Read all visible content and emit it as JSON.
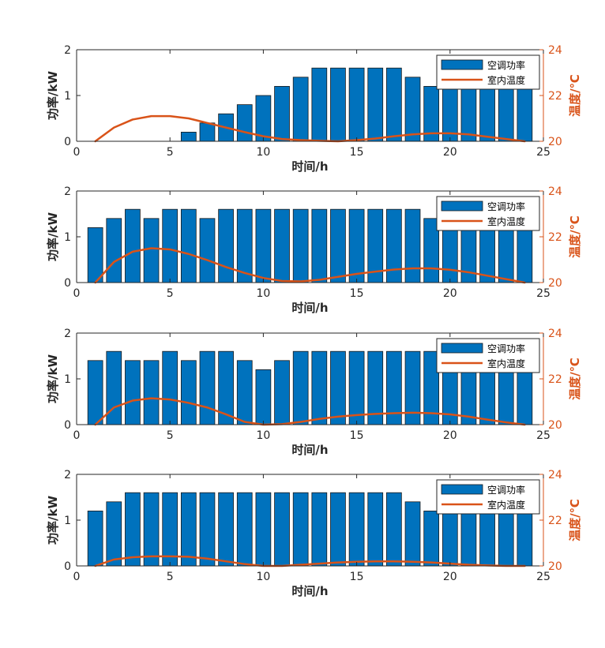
{
  "colors": {
    "bar": "#0072BD",
    "line": "#D95319",
    "axis": "#262626",
    "legend_border": "#262626"
  },
  "chart_data": [
    {
      "type": "bar",
      "xlabel": "时间/h",
      "ylabel": "功率/kW",
      "y2label": "温度/℃",
      "xlim": [
        0,
        25
      ],
      "ylim": [
        0,
        2
      ],
      "y2lim": [
        20,
        24
      ],
      "xticks": [
        "0",
        "5",
        "10",
        "15",
        "20",
        "25"
      ],
      "yticks": [
        "0",
        "1",
        "2"
      ],
      "y2ticks": [
        "20",
        "22",
        "24"
      ],
      "legend": {
        "position": "top-right",
        "entries": [
          "空调功率",
          "室内温度"
        ]
      },
      "x": [
        1,
        2,
        3,
        4,
        5,
        6,
        7,
        8,
        9,
        10,
        11,
        12,
        13,
        14,
        15,
        16,
        17,
        18,
        19,
        20,
        21,
        22,
        23,
        24
      ],
      "series": [
        {
          "name": "空调功率",
          "type": "bar",
          "axis": "left",
          "values": [
            0,
            0,
            0,
            0,
            0,
            0.2,
            0.4,
            0.6,
            0.8,
            1.0,
            1.2,
            1.4,
            1.6,
            1.6,
            1.6,
            1.6,
            1.6,
            1.4,
            1.2,
            1.4,
            1.6,
            1.6,
            1.4,
            1.2
          ]
        },
        {
          "name": "室内温度",
          "type": "line",
          "axis": "right",
          "values": [
            20.0,
            20.6,
            20.95,
            21.1,
            21.1,
            21.0,
            20.8,
            20.6,
            20.4,
            20.22,
            20.1,
            20.05,
            20.02,
            20.0,
            20.05,
            20.12,
            20.22,
            20.3,
            20.35,
            20.35,
            20.3,
            20.2,
            20.1,
            20.0
          ]
        }
      ]
    },
    {
      "type": "bar",
      "xlabel": "时间/h",
      "ylabel": "功率/kW",
      "y2label": "温度/℃",
      "xlim": [
        0,
        25
      ],
      "ylim": [
        0,
        2
      ],
      "y2lim": [
        20,
        24
      ],
      "xticks": [
        "0",
        "5",
        "10",
        "15",
        "20",
        "25"
      ],
      "yticks": [
        "0",
        "1",
        "2"
      ],
      "y2ticks": [
        "20",
        "22",
        "24"
      ],
      "legend": {
        "position": "top-right",
        "entries": [
          "空调功率",
          "室内温度"
        ]
      },
      "x": [
        1,
        2,
        3,
        4,
        5,
        6,
        7,
        8,
        9,
        10,
        11,
        12,
        13,
        14,
        15,
        16,
        17,
        18,
        19,
        20,
        21,
        22,
        23,
        24
      ],
      "series": [
        {
          "name": "空调功率",
          "type": "bar",
          "axis": "left",
          "values": [
            1.2,
            1.4,
            1.6,
            1.4,
            1.6,
            1.6,
            1.4,
            1.6,
            1.6,
            1.6,
            1.6,
            1.6,
            1.6,
            1.6,
            1.6,
            1.6,
            1.6,
            1.6,
            1.4,
            1.6,
            1.6,
            1.6,
            1.6,
            1.4
          ]
        },
        {
          "name": "室内温度",
          "type": "line",
          "axis": "right",
          "values": [
            20.0,
            20.9,
            21.35,
            21.5,
            21.45,
            21.25,
            20.98,
            20.68,
            20.42,
            20.2,
            20.07,
            20.05,
            20.12,
            20.25,
            20.38,
            20.48,
            20.57,
            20.62,
            20.62,
            20.56,
            20.45,
            20.3,
            20.15,
            20.0
          ]
        }
      ]
    },
    {
      "type": "bar",
      "xlabel": "时间/h",
      "ylabel": "功率/kW",
      "y2label": "温度/℃",
      "xlim": [
        0,
        25
      ],
      "ylim": [
        0,
        2
      ],
      "y2lim": [
        20,
        24
      ],
      "xticks": [
        "0",
        "5",
        "10",
        "15",
        "20",
        "25"
      ],
      "yticks": [
        "0",
        "1",
        "2"
      ],
      "y2ticks": [
        "20",
        "22",
        "24"
      ],
      "legend": {
        "position": "top-right",
        "entries": [
          "空调功率",
          "室内温度"
        ]
      },
      "x": [
        1,
        2,
        3,
        4,
        5,
        6,
        7,
        8,
        9,
        10,
        11,
        12,
        13,
        14,
        15,
        16,
        17,
        18,
        19,
        20,
        21,
        22,
        23,
        24
      ],
      "series": [
        {
          "name": "空调功率",
          "type": "bar",
          "axis": "left",
          "values": [
            1.4,
            1.6,
            1.4,
            1.4,
            1.6,
            1.4,
            1.6,
            1.6,
            1.4,
            1.2,
            1.4,
            1.6,
            1.6,
            1.6,
            1.6,
            1.6,
            1.6,
            1.6,
            1.6,
            1.6,
            1.6,
            1.6,
            1.6,
            1.4
          ]
        },
        {
          "name": "室内温度",
          "type": "line",
          "axis": "right",
          "values": [
            20.0,
            20.75,
            21.05,
            21.15,
            21.1,
            20.95,
            20.75,
            20.45,
            20.12,
            20.0,
            20.02,
            20.12,
            20.25,
            20.35,
            20.42,
            20.47,
            20.5,
            20.52,
            20.5,
            20.45,
            20.35,
            20.22,
            20.1,
            20.0
          ]
        }
      ]
    },
    {
      "type": "bar",
      "xlabel": "时间/h",
      "ylabel": "功率/kW",
      "y2label": "温度/℃",
      "xlim": [
        0,
        25
      ],
      "ylim": [
        0,
        2
      ],
      "y2lim": [
        20,
        24
      ],
      "xticks": [
        "0",
        "5",
        "10",
        "15",
        "20",
        "25"
      ],
      "yticks": [
        "0",
        "1",
        "2"
      ],
      "y2ticks": [
        "20",
        "22",
        "24"
      ],
      "legend": {
        "position": "top-right",
        "entries": [
          "空调功率",
          "室内温度"
        ]
      },
      "x": [
        1,
        2,
        3,
        4,
        5,
        6,
        7,
        8,
        9,
        10,
        11,
        12,
        13,
        14,
        15,
        16,
        17,
        18,
        19,
        20,
        21,
        22,
        23,
        24
      ],
      "series": [
        {
          "name": "空调功率",
          "type": "bar",
          "axis": "left",
          "values": [
            1.2,
            1.4,
            1.6,
            1.6,
            1.6,
            1.6,
            1.6,
            1.6,
            1.6,
            1.6,
            1.6,
            1.6,
            1.6,
            1.6,
            1.6,
            1.6,
            1.6,
            1.4,
            1.2,
            1.4,
            1.6,
            1.4,
            1.4,
            1.2
          ]
        },
        {
          "name": "室内温度",
          "type": "line",
          "axis": "right",
          "values": [
            20.0,
            20.28,
            20.38,
            20.42,
            20.42,
            20.4,
            20.32,
            20.2,
            20.08,
            20.0,
            20.0,
            20.05,
            20.1,
            20.15,
            20.18,
            20.2,
            20.2,
            20.18,
            20.15,
            20.1,
            20.05,
            20.02,
            20.0,
            20.0
          ]
        }
      ]
    }
  ]
}
